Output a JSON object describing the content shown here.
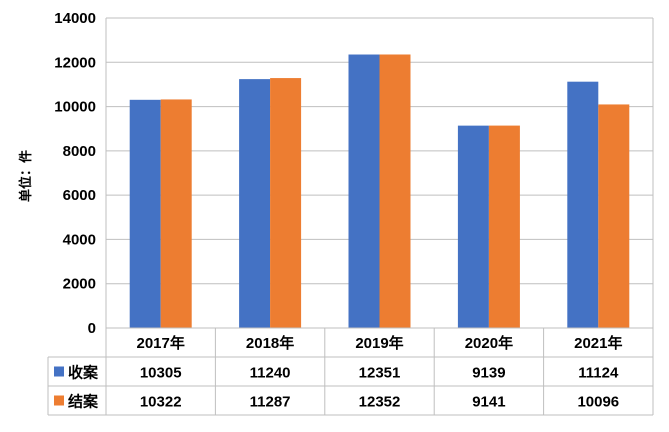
{
  "chart_data": {
    "type": "bar",
    "ylabel": "单位：件",
    "ylim": [
      0,
      14000
    ],
    "yticks": [
      0,
      2000,
      4000,
      6000,
      8000,
      10000,
      12000,
      14000
    ],
    "grid": true,
    "legend": "data-table",
    "categories": [
      "2017年",
      "2018年",
      "2019年",
      "2020年",
      "2021年"
    ],
    "series": [
      {
        "name": "收案",
        "color": "#4472C4",
        "values": [
          10305,
          11240,
          12351,
          9139,
          11124
        ]
      },
      {
        "name": "结案",
        "color": "#ED7D31",
        "values": [
          10322,
          11287,
          12352,
          9141,
          10096
        ]
      }
    ]
  }
}
